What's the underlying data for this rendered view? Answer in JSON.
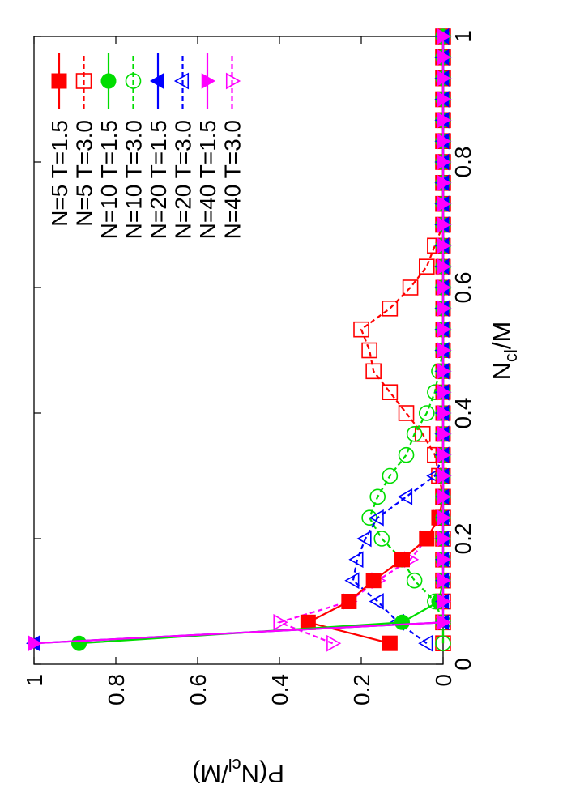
{
  "chart_data": {
    "type": "line",
    "orientation": "rotated-90-ccw",
    "xlabel": "N_cl/M",
    "ylabel": "P(N_cl/M)",
    "xlim": [
      0,
      1
    ],
    "ylim": [
      0,
      1
    ],
    "x_ticks": [
      "0",
      "0.2",
      "0.4",
      "0.6",
      "0.8",
      "1"
    ],
    "y_ticks": [
      "0",
      "0.2",
      "0.4",
      "0.6",
      "0.8",
      "1"
    ],
    "legend_position": "top-right",
    "series": [
      {
        "name": "N=5 T=1.5",
        "color": "#ff0000",
        "dash": "solid",
        "marker": "square-filled",
        "x": [
          0.0333,
          0.0667,
          0.1,
          0.1333,
          0.1667,
          0.2,
          0.2333,
          0.2667,
          0.3,
          0.3333,
          0.3667,
          0.4,
          0.4333,
          0.4667,
          0.5,
          0.5333,
          0.5667,
          0.6,
          0.6333,
          0.6667,
          0.7,
          0.7333,
          0.7667,
          0.8,
          0.8333,
          0.8667,
          0.9,
          0.9333,
          0.9667,
          1.0
        ],
        "y": [
          0.13,
          0.33,
          0.23,
          0.17,
          0.1,
          0.04,
          0.01,
          0,
          0,
          0,
          0,
          0,
          0,
          0,
          0,
          0,
          0,
          0,
          0,
          0,
          0,
          0,
          0,
          0,
          0,
          0,
          0,
          0,
          0,
          0
        ]
      },
      {
        "name": "N=5 T=3.0",
        "color": "#ff0000",
        "dash": "dashed",
        "marker": "square-open",
        "x": [
          0.0333,
          0.0667,
          0.1,
          0.1333,
          0.1667,
          0.2,
          0.2333,
          0.2667,
          0.3,
          0.3333,
          0.3667,
          0.4,
          0.4333,
          0.4667,
          0.5,
          0.5333,
          0.5667,
          0.6,
          0.6333,
          0.6667,
          0.7,
          0.7333,
          0.7667,
          0.8,
          0.8333,
          0.8667,
          0.9,
          0.9333,
          0.9667,
          1.0
        ],
        "y": [
          0,
          0,
          0,
          0,
          0,
          0,
          0,
          0,
          0.01,
          0.02,
          0.05,
          0.09,
          0.13,
          0.17,
          0.18,
          0.2,
          0.13,
          0.08,
          0.04,
          0.02,
          0,
          0,
          0,
          0,
          0,
          0,
          0,
          0,
          0,
          0
        ]
      },
      {
        "name": "N=10 T=1.5",
        "color": "#00dd00",
        "dash": "solid",
        "marker": "circle-filled",
        "x": [
          0.0333,
          0.0667,
          0.1,
          0.1333,
          0.1667,
          0.2,
          0.2333,
          0.2667,
          0.3,
          0.3333,
          0.3667,
          0.4,
          0.4333,
          0.4667,
          0.5,
          0.5333,
          0.5667,
          0.6,
          0.6333,
          0.6667,
          0.7,
          0.7333,
          0.7667,
          0.8,
          0.8333,
          0.8667,
          0.9,
          0.9333,
          0.9667,
          1.0
        ],
        "y": [
          0.89,
          0.1,
          0.01,
          0,
          0,
          0,
          0,
          0,
          0,
          0,
          0,
          0,
          0,
          0,
          0,
          0,
          0,
          0,
          0,
          0,
          0,
          0,
          0,
          0,
          0,
          0,
          0,
          0,
          0,
          0
        ]
      },
      {
        "name": "N=10 T=3.0",
        "color": "#00dd00",
        "dash": "dashed",
        "marker": "circle-open",
        "x": [
          0.0333,
          0.0667,
          0.1,
          0.1333,
          0.1667,
          0.2,
          0.2333,
          0.2667,
          0.3,
          0.3333,
          0.3667,
          0.4,
          0.4333,
          0.4667,
          0.5,
          0.5333,
          0.5667,
          0.6,
          0.6333,
          0.6667,
          0.7,
          0.7333,
          0.7667,
          0.8,
          0.8333,
          0.8667,
          0.9,
          0.9333,
          0.9667,
          1.0
        ],
        "y": [
          0,
          0,
          0.02,
          0.07,
          0.1,
          0.15,
          0.18,
          0.16,
          0.13,
          0.09,
          0.07,
          0.04,
          0.02,
          0.01,
          0,
          0,
          0,
          0,
          0,
          0,
          0,
          0,
          0,
          0,
          0,
          0,
          0,
          0,
          0,
          0
        ]
      },
      {
        "name": "N=20 T=1.5",
        "color": "#0000ff",
        "dash": "solid",
        "marker": "triangle-up-filled",
        "x": [
          0.0333,
          0.0667,
          0.1,
          0.1333,
          0.1667,
          0.2,
          0.2333,
          0.2667,
          0.3,
          0.3333,
          0.3667,
          0.4,
          0.4333,
          0.4667,
          0.5,
          0.5333,
          0.5667,
          0.6,
          0.6333,
          0.6667,
          0.7,
          0.7333,
          0.7667,
          0.8,
          0.8333,
          0.8667,
          0.9,
          0.9333,
          0.9667,
          1.0
        ],
        "y": [
          1.0,
          0,
          0,
          0,
          0,
          0,
          0,
          0,
          0,
          0,
          0,
          0,
          0,
          0,
          0,
          0,
          0,
          0,
          0,
          0,
          0,
          0,
          0,
          0,
          0,
          0,
          0,
          0,
          0,
          0
        ]
      },
      {
        "name": "N=20 T=3.0",
        "color": "#0000ff",
        "dash": "dashed",
        "marker": "triangle-up-open",
        "x": [
          0.0333,
          0.0667,
          0.1,
          0.1333,
          0.1667,
          0.2,
          0.2333,
          0.2667,
          0.3,
          0.3333,
          0.3667,
          0.4,
          0.4333,
          0.4667,
          0.5,
          0.5333,
          0.5667,
          0.6,
          0.6333,
          0.6667,
          0.7,
          0.7333,
          0.7667,
          0.8,
          0.8333,
          0.8667,
          0.9,
          0.9333,
          0.9667,
          1.0
        ],
        "y": [
          0.04,
          0.11,
          0.16,
          0.22,
          0.21,
          0.19,
          0.16,
          0.09,
          0.02,
          0,
          0,
          0,
          0,
          0,
          0,
          0,
          0,
          0,
          0,
          0,
          0,
          0,
          0,
          0,
          0,
          0,
          0,
          0,
          0,
          0
        ]
      },
      {
        "name": "N=40 T=1.5",
        "color": "#ff00ff",
        "dash": "solid",
        "marker": "triangle-down-filled",
        "x": [
          0.0333,
          0.0667,
          0.1,
          0.1333,
          0.1667,
          0.2,
          0.2333,
          0.2667,
          0.3,
          0.3333,
          0.3667,
          0.4,
          0.4333,
          0.4667,
          0.5,
          0.5333,
          0.5667,
          0.6,
          0.6333,
          0.6667,
          0.7,
          0.7333,
          0.7667,
          0.8,
          0.8333,
          0.8667,
          0.9,
          0.9333,
          0.9667,
          1.0
        ],
        "y": [
          1.0,
          0,
          0,
          0,
          0,
          0,
          0,
          0,
          0,
          0,
          0,
          0,
          0,
          0,
          0,
          0,
          0,
          0,
          0,
          0,
          0,
          0,
          0,
          0,
          0,
          0,
          0,
          0,
          0,
          0
        ]
      },
      {
        "name": "N=40 T=3.0",
        "color": "#ff00ff",
        "dash": "dashed",
        "marker": "triangle-down-open",
        "x": [
          0.0333,
          0.0667,
          0.1,
          0.1333,
          0.1667,
          0.2,
          0.2333,
          0.2667,
          0.3,
          0.3333,
          0.3667,
          0.4,
          0.4333,
          0.4667,
          0.5,
          0.5333,
          0.5667,
          0.6,
          0.6333,
          0.6667,
          0.7,
          0.7333,
          0.7667,
          0.8,
          0.8333,
          0.8667,
          0.9,
          0.9333,
          0.9667,
          1.0
        ],
        "y": [
          0.27,
          0.4,
          0.23,
          0.16,
          0.08,
          0.04,
          0.01,
          0,
          0,
          0,
          0,
          0,
          0,
          0,
          0,
          0,
          0,
          0,
          0,
          0,
          0,
          0,
          0,
          0,
          0,
          0,
          0,
          0,
          0,
          0
        ]
      }
    ]
  }
}
